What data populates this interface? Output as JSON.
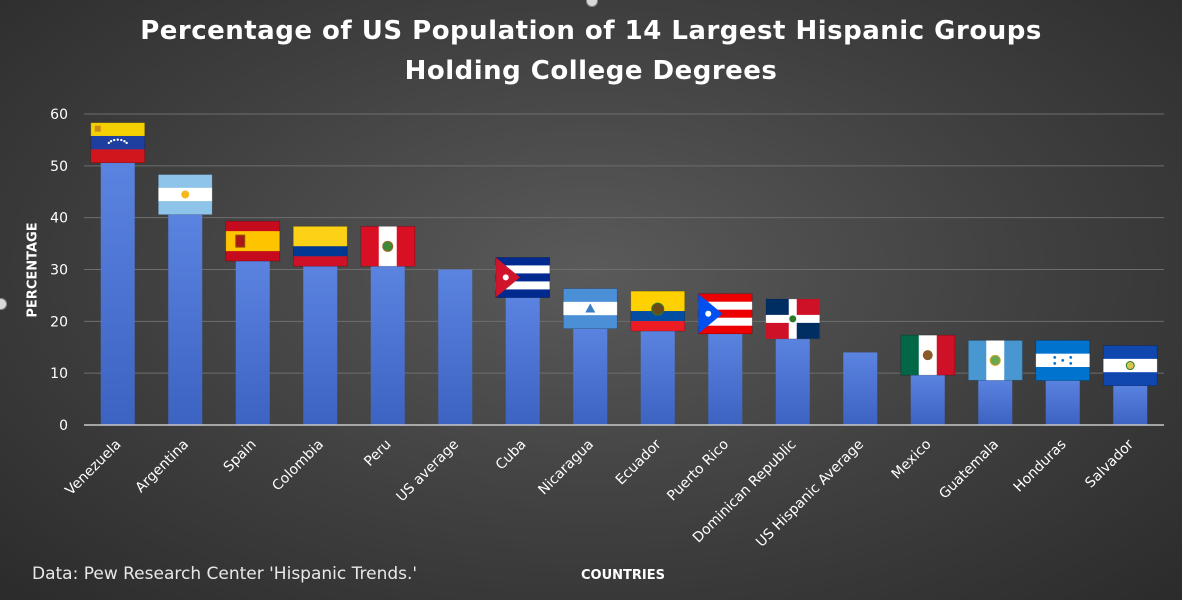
{
  "chart_data": {
    "type": "bar",
    "title_lines": [
      "Percentage of US Population of 14 Largest Hispanic Groups",
      "Holding College Degrees"
    ],
    "xlabel": "COUNTRIES",
    "ylabel": "PERCENTAGE",
    "ylim": [
      0,
      60
    ],
    "yticks": [
      "0",
      "10",
      "20",
      "30",
      "40",
      "50",
      "60"
    ],
    "ytick_values": [
      0,
      10,
      20,
      30,
      40,
      50,
      60
    ],
    "grid": true,
    "bar_color": "#4a72d3",
    "categories": [
      "Venezuela",
      "Argentina",
      "Spain",
      "Colombia",
      "Peru",
      "US average",
      "Cuba",
      "Nicaragua",
      "Ecuador",
      "Puerto Rico",
      "Dominican Republic",
      "US Hispanic Average",
      "Mexico",
      "Guatemala",
      "Honduras",
      "Salvador"
    ],
    "values": [
      51,
      41,
      32,
      31,
      31,
      30,
      25,
      19,
      18.5,
      18,
      17,
      14,
      10,
      9,
      9,
      8
    ],
    "flags": [
      "venezuela-flag",
      "argentina-flag",
      "spain-flag",
      "colombia-flag",
      "peru-flag",
      "",
      "cuba-flag",
      "nicaragua-flag",
      "ecuador-flag",
      "puerto-rico-flag",
      "dominican-republic-flag",
      "",
      "mexico-flag",
      "guatemala-flag",
      "honduras-flag",
      "salvador-flag"
    ]
  },
  "source_note": "Data: Pew Research Center 'Hispanic Trends.'"
}
